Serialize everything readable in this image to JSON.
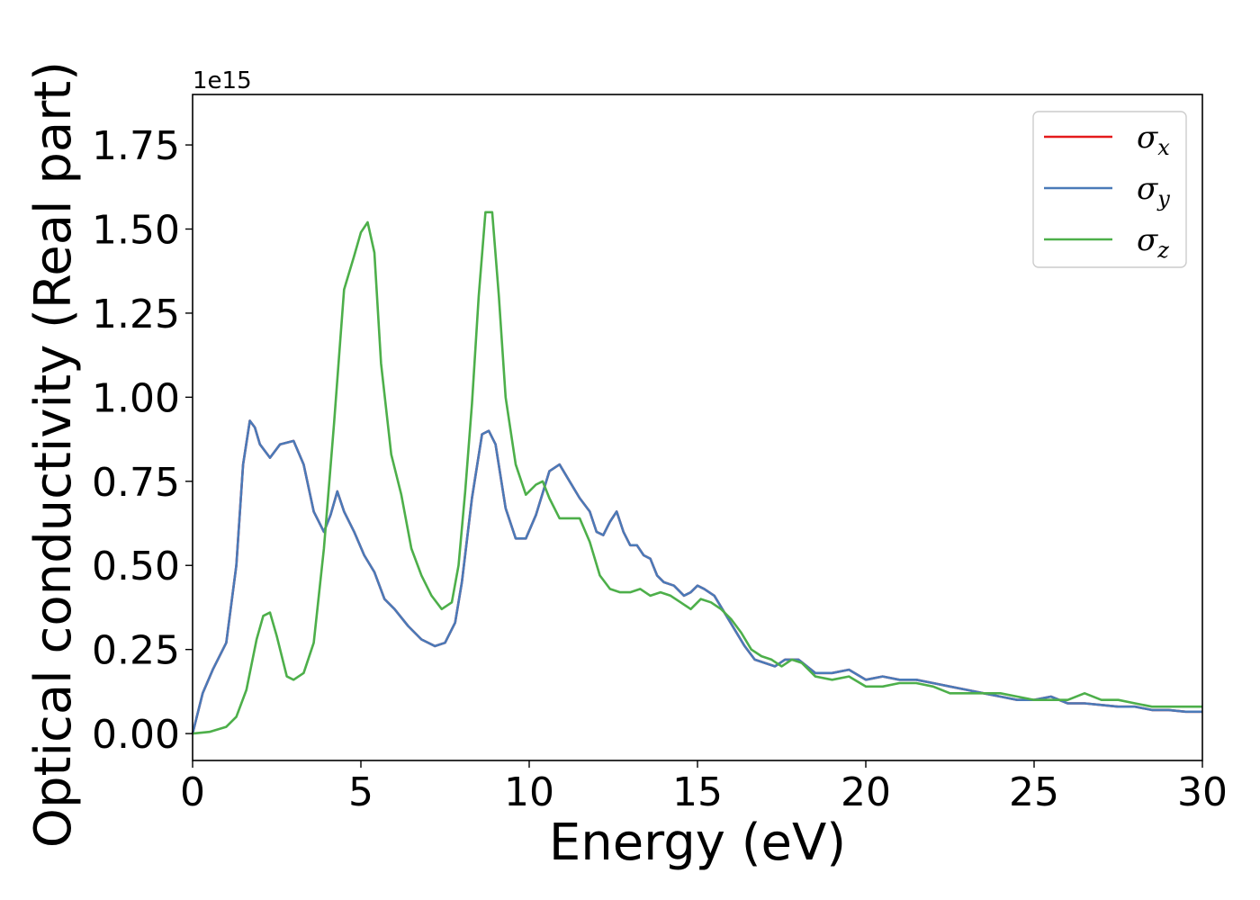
{
  "chart_data": {
    "type": "line",
    "title": "",
    "xlabel": "Energy (eV)",
    "ylabel": "Optical conductivity (Real part)",
    "y_offset_label": "1e15",
    "xlim": [
      0,
      30
    ],
    "ylim": [
      -0.08,
      1.9
    ],
    "xticks": [
      0,
      5,
      10,
      15,
      20,
      25,
      30
    ],
    "xtick_labels": [
      "0",
      "5",
      "10",
      "15",
      "20",
      "25",
      "30"
    ],
    "yticks": [
      0.0,
      0.25,
      0.5,
      0.75,
      1.0,
      1.25,
      1.5,
      1.75
    ],
    "ytick_labels": [
      "0.00",
      "0.25",
      "0.50",
      "0.75",
      "1.00",
      "1.25",
      "1.50",
      "1.75"
    ],
    "grid": false,
    "legend_position": "top-right",
    "series": [
      {
        "name": "σx",
        "base": "σ",
        "sub": "x",
        "color": "#e41a1c",
        "x": [
          0,
          0.3,
          0.6,
          1.0,
          1.3,
          1.5,
          1.7,
          1.85,
          2.0,
          2.3,
          2.6,
          3.0,
          3.3,
          3.6,
          3.9,
          4.1,
          4.3,
          4.5,
          4.8,
          5.1,
          5.4,
          5.7,
          6.0,
          6.4,
          6.8,
          7.2,
          7.5,
          7.8,
          8.0,
          8.3,
          8.6,
          8.8,
          9.0,
          9.3,
          9.6,
          9.9,
          10.2,
          10.6,
          10.9,
          11.2,
          11.5,
          11.8,
          12.0,
          12.2,
          12.4,
          12.6,
          12.8,
          13.0,
          13.2,
          13.4,
          13.6,
          13.8,
          14.0,
          14.3,
          14.6,
          14.8,
          15.0,
          15.2,
          15.5,
          15.8,
          16.1,
          16.4,
          16.7,
          17.0,
          17.3,
          17.6,
          18.0,
          18.5,
          19.0,
          19.5,
          20.0,
          20.5,
          21.0,
          21.5,
          22.0,
          22.5,
          23.0,
          23.5,
          24.0,
          24.5,
          25.0,
          25.5,
          26.0,
          26.5,
          27.0,
          27.5,
          28.0,
          28.5,
          29.0,
          29.5,
          30.0
        ],
        "values": [
          0.0,
          0.12,
          0.19,
          0.27,
          0.5,
          0.8,
          0.93,
          0.91,
          0.86,
          0.82,
          0.86,
          0.87,
          0.8,
          0.66,
          0.6,
          0.65,
          0.72,
          0.66,
          0.6,
          0.53,
          0.48,
          0.4,
          0.37,
          0.32,
          0.28,
          0.26,
          0.27,
          0.33,
          0.45,
          0.7,
          0.89,
          0.9,
          0.86,
          0.67,
          0.58,
          0.58,
          0.65,
          0.78,
          0.8,
          0.75,
          0.7,
          0.66,
          0.6,
          0.59,
          0.63,
          0.66,
          0.6,
          0.56,
          0.56,
          0.53,
          0.52,
          0.47,
          0.45,
          0.44,
          0.41,
          0.42,
          0.44,
          0.43,
          0.41,
          0.36,
          0.31,
          0.26,
          0.22,
          0.21,
          0.2,
          0.22,
          0.22,
          0.18,
          0.18,
          0.19,
          0.16,
          0.17,
          0.16,
          0.16,
          0.15,
          0.14,
          0.13,
          0.12,
          0.11,
          0.1,
          0.1,
          0.11,
          0.09,
          0.09,
          0.085,
          0.08,
          0.08,
          0.07,
          0.07,
          0.065,
          0.065
        ]
      },
      {
        "name": "σy",
        "base": "σ",
        "sub": "y",
        "color": "#4a7ab8",
        "x": [
          0,
          0.3,
          0.6,
          1.0,
          1.3,
          1.5,
          1.7,
          1.85,
          2.0,
          2.3,
          2.6,
          3.0,
          3.3,
          3.6,
          3.9,
          4.1,
          4.3,
          4.5,
          4.8,
          5.1,
          5.4,
          5.7,
          6.0,
          6.4,
          6.8,
          7.2,
          7.5,
          7.8,
          8.0,
          8.3,
          8.6,
          8.8,
          9.0,
          9.3,
          9.6,
          9.9,
          10.2,
          10.6,
          10.9,
          11.2,
          11.5,
          11.8,
          12.0,
          12.2,
          12.4,
          12.6,
          12.8,
          13.0,
          13.2,
          13.4,
          13.6,
          13.8,
          14.0,
          14.3,
          14.6,
          14.8,
          15.0,
          15.2,
          15.5,
          15.8,
          16.1,
          16.4,
          16.7,
          17.0,
          17.3,
          17.6,
          18.0,
          18.5,
          19.0,
          19.5,
          20.0,
          20.5,
          21.0,
          21.5,
          22.0,
          22.5,
          23.0,
          23.5,
          24.0,
          24.5,
          25.0,
          25.5,
          26.0,
          26.5,
          27.0,
          27.5,
          28.0,
          28.5,
          29.0,
          29.5,
          30.0
        ],
        "values": [
          0.0,
          0.12,
          0.19,
          0.27,
          0.5,
          0.8,
          0.93,
          0.91,
          0.86,
          0.82,
          0.86,
          0.87,
          0.8,
          0.66,
          0.6,
          0.65,
          0.72,
          0.66,
          0.6,
          0.53,
          0.48,
          0.4,
          0.37,
          0.32,
          0.28,
          0.26,
          0.27,
          0.33,
          0.45,
          0.7,
          0.89,
          0.9,
          0.86,
          0.67,
          0.58,
          0.58,
          0.65,
          0.78,
          0.8,
          0.75,
          0.7,
          0.66,
          0.6,
          0.59,
          0.63,
          0.66,
          0.6,
          0.56,
          0.56,
          0.53,
          0.52,
          0.47,
          0.45,
          0.44,
          0.41,
          0.42,
          0.44,
          0.43,
          0.41,
          0.36,
          0.31,
          0.26,
          0.22,
          0.21,
          0.2,
          0.22,
          0.22,
          0.18,
          0.18,
          0.19,
          0.16,
          0.17,
          0.16,
          0.16,
          0.15,
          0.14,
          0.13,
          0.12,
          0.11,
          0.1,
          0.1,
          0.11,
          0.09,
          0.09,
          0.085,
          0.08,
          0.08,
          0.07,
          0.07,
          0.065,
          0.065
        ]
      },
      {
        "name": "σz",
        "base": "σ",
        "sub": "z",
        "color": "#4daf4a",
        "x": [
          0,
          0.5,
          1.0,
          1.3,
          1.6,
          1.9,
          2.1,
          2.3,
          2.5,
          2.8,
          3.0,
          3.3,
          3.6,
          3.9,
          4.2,
          4.5,
          4.8,
          5.0,
          5.2,
          5.4,
          5.6,
          5.9,
          6.2,
          6.5,
          6.8,
          7.1,
          7.4,
          7.7,
          7.9,
          8.1,
          8.3,
          8.5,
          8.7,
          8.9,
          9.1,
          9.3,
          9.6,
          9.9,
          10.2,
          10.4,
          10.6,
          10.9,
          11.2,
          11.5,
          11.8,
          12.1,
          12.4,
          12.7,
          13.0,
          13.3,
          13.6,
          13.9,
          14.2,
          14.5,
          14.8,
          15.1,
          15.4,
          15.7,
          16.0,
          16.3,
          16.6,
          16.9,
          17.2,
          17.5,
          17.8,
          18.1,
          18.5,
          19.0,
          19.5,
          20.0,
          20.5,
          21.0,
          21.5,
          22.0,
          22.5,
          23.0,
          23.5,
          24.0,
          24.5,
          25.0,
          25.5,
          26.0,
          26.5,
          27.0,
          27.5,
          28.0,
          28.5,
          29.0,
          29.5,
          30.0
        ],
        "values": [
          0.0,
          0.005,
          0.02,
          0.05,
          0.13,
          0.28,
          0.35,
          0.36,
          0.29,
          0.17,
          0.16,
          0.18,
          0.27,
          0.55,
          0.92,
          1.32,
          1.42,
          1.49,
          1.52,
          1.43,
          1.1,
          0.83,
          0.71,
          0.55,
          0.47,
          0.41,
          0.37,
          0.39,
          0.5,
          0.72,
          0.98,
          1.3,
          1.55,
          1.55,
          1.3,
          1.0,
          0.8,
          0.71,
          0.74,
          0.75,
          0.7,
          0.64,
          0.64,
          0.64,
          0.57,
          0.47,
          0.43,
          0.42,
          0.42,
          0.43,
          0.41,
          0.42,
          0.41,
          0.39,
          0.37,
          0.4,
          0.39,
          0.37,
          0.34,
          0.3,
          0.25,
          0.23,
          0.22,
          0.2,
          0.22,
          0.21,
          0.17,
          0.16,
          0.17,
          0.14,
          0.14,
          0.15,
          0.15,
          0.14,
          0.12,
          0.12,
          0.12,
          0.12,
          0.11,
          0.1,
          0.1,
          0.1,
          0.12,
          0.1,
          0.1,
          0.09,
          0.08,
          0.08,
          0.08,
          0.08
        ]
      }
    ]
  }
}
